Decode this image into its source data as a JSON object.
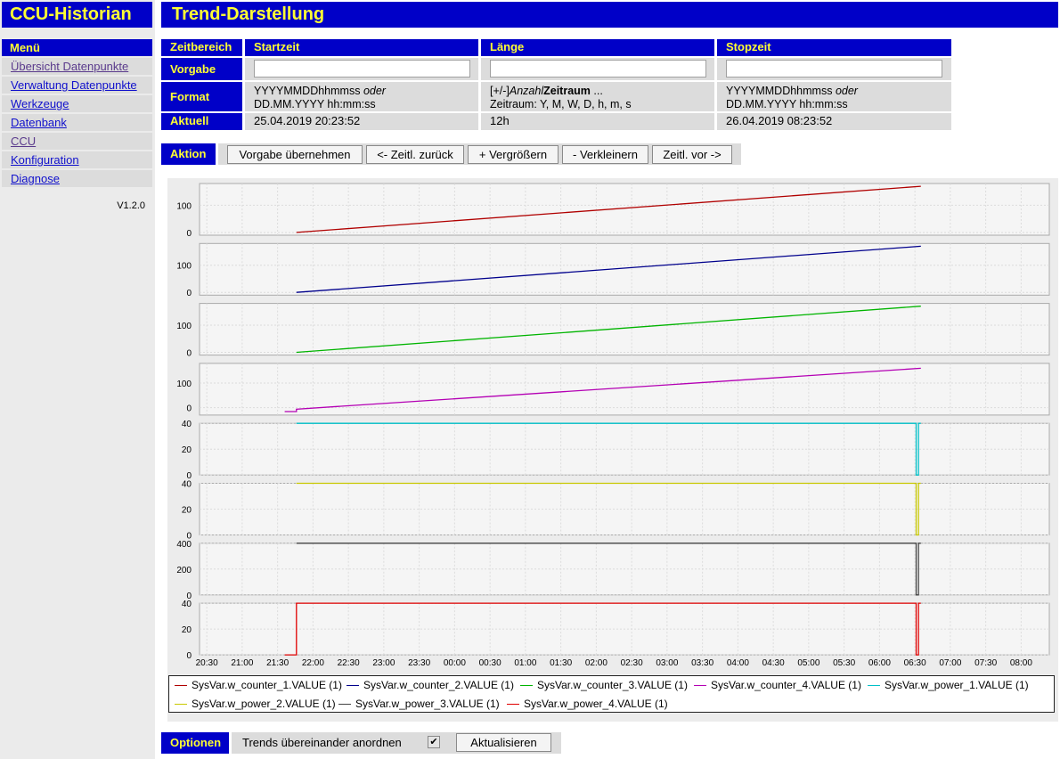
{
  "app_title": "CCU-Historian",
  "menu": {
    "header": "Menü",
    "items": [
      {
        "label": "Übersicht Datenpunkte"
      },
      {
        "label": "Verwaltung Datenpunkte"
      },
      {
        "label": "Werkzeuge"
      },
      {
        "label": "Datenbank"
      },
      {
        "label": "CCU"
      },
      {
        "label": "Konfiguration"
      },
      {
        "label": "Diagnose"
      }
    ],
    "version": "V1.2.0"
  },
  "page_title": "Trend-Darstellung",
  "time_table": {
    "headers": [
      "Zeitbereich",
      "Startzeit",
      "Länge",
      "Stopzeit"
    ],
    "rows": {
      "vorgabe": {
        "label": "Vorgabe",
        "start": "",
        "length": "",
        "stop": ""
      },
      "format": {
        "label": "Format",
        "start_l1": "YYYYMMDDhhmmss",
        "start_oder": "oder",
        "start_l2": "DD.MM.YYYY hh:mm:ss",
        "len_pre": "[+/-]",
        "len_anzahl": "Anzahl",
        "len_zeitraum": "Zeitraum",
        "len_post": " ...",
        "len_l2": "Zeitraum: Y, M, W, D, h, m, s",
        "stop_l1": "YYYYMMDDhhmmss",
        "stop_oder": "oder",
        "stop_l2": "DD.MM.YYYY hh:mm:ss"
      },
      "aktuell": {
        "label": "Aktuell",
        "start": "25.04.2019 20:23:52",
        "length": "12h",
        "stop": "26.04.2019 08:23:52"
      }
    }
  },
  "action": {
    "label": "Aktion",
    "buttons": [
      "Vorgabe übernehmen",
      "<- Zeitl. zurück",
      "+ Vergrößern",
      "- Verkleinern",
      "Zeitl. vor ->"
    ]
  },
  "options": {
    "label": "Optionen",
    "stack_label": "Trends übereinander anordnen",
    "stack_checked": true,
    "refresh_button": "Aktualisieren"
  },
  "chart_data": {
    "type": "line",
    "x_ticks": [
      "20:30",
      "21:00",
      "21:30",
      "22:00",
      "22:30",
      "23:00",
      "23:30",
      "00:00",
      "00:30",
      "01:00",
      "01:30",
      "02:00",
      "02:30",
      "03:00",
      "03:30",
      "04:00",
      "04:30",
      "05:00",
      "05:30",
      "06:00",
      "06:30",
      "07:00",
      "07:30",
      "08:00"
    ],
    "x_range": [
      "20:23:52",
      "08:23:52"
    ],
    "panels": [
      {
        "series": "SysVar.w_counter_1.VALUE (1)",
        "color": "#b00000",
        "kind": "ramp",
        "y_ticks": [
          0,
          100
        ],
        "ylim": [
          -10,
          180
        ],
        "x": [
          "21:46",
          "06:35"
        ],
        "y": [
          0,
          170
        ]
      },
      {
        "series": "SysVar.w_counter_2.VALUE (1)",
        "color": "#00008c",
        "kind": "ramp",
        "y_ticks": [
          0,
          100
        ],
        "ylim": [
          -10,
          180
        ],
        "x": [
          "21:46",
          "06:35"
        ],
        "y": [
          0,
          170
        ]
      },
      {
        "series": "SysVar.w_counter_3.VALUE (1)",
        "color": "#00b400",
        "kind": "ramp",
        "y_ticks": [
          0,
          100
        ],
        "ylim": [
          -10,
          180
        ],
        "x": [
          "21:46",
          "06:35"
        ],
        "y": [
          0,
          170
        ]
      },
      {
        "series": "SysVar.w_counter_4.VALUE (1)",
        "color": "#b400b4",
        "kind": "ramp",
        "y_ticks": [
          0,
          100
        ],
        "ylim": [
          -30,
          180
        ],
        "x": [
          "21:36",
          "21:46",
          "21:46",
          "06:35"
        ],
        "y": [
          -16,
          -16,
          -6,
          160
        ]
      },
      {
        "series": "SysVar.w_power_1.VALUE (1)",
        "color": "#00c0c8",
        "kind": "flat",
        "y_ticks": [
          0,
          20,
          40
        ],
        "ylim": [
          0,
          40
        ],
        "x": [
          "21:46",
          "06:31",
          "06:31",
          "06:33",
          "06:33",
          "06:35"
        ],
        "y": [
          40,
          40,
          0,
          0,
          40,
          40
        ]
      },
      {
        "series": "SysVar.w_power_2.VALUE (1)",
        "color": "#c8c800",
        "kind": "flat",
        "y_ticks": [
          0,
          20,
          40
        ],
        "ylim": [
          0,
          40
        ],
        "x": [
          "21:46",
          "06:31",
          "06:31",
          "06:33",
          "06:33",
          "06:35"
        ],
        "y": [
          40,
          40,
          0,
          0,
          40,
          40
        ]
      },
      {
        "series": "SysVar.w_power_3.VALUE (1)",
        "color": "#444444",
        "kind": "flat",
        "y_ticks": [
          0,
          200,
          400
        ],
        "ylim": [
          0,
          400
        ],
        "x": [
          "21:46",
          "06:31",
          "06:31",
          "06:33",
          "06:33",
          "06:35"
        ],
        "y": [
          400,
          400,
          0,
          0,
          400,
          400
        ]
      },
      {
        "series": "SysVar.w_power_4.VALUE (1)",
        "color": "#e00000",
        "kind": "flat",
        "y_ticks": [
          0,
          20,
          40
        ],
        "ylim": [
          0,
          40
        ],
        "x": [
          "21:36",
          "21:46",
          "21:46",
          "06:31",
          "06:31",
          "06:33",
          "06:33",
          "06:35"
        ],
        "y": [
          0,
          0,
          40,
          40,
          0,
          0,
          40,
          40
        ]
      }
    ],
    "legend": [
      {
        "name": "SysVar.w_counter_1.VALUE (1)",
        "color": "#b00000"
      },
      {
        "name": "SysVar.w_counter_2.VALUE (1)",
        "color": "#00008c"
      },
      {
        "name": "SysVar.w_counter_3.VALUE (1)",
        "color": "#00b400"
      },
      {
        "name": "SysVar.w_counter_4.VALUE (1)",
        "color": "#b400b4"
      },
      {
        "name": "SysVar.w_power_1.VALUE (1)",
        "color": "#00c0c8"
      },
      {
        "name": "SysVar.w_power_2.VALUE (1)",
        "color": "#c8c800"
      },
      {
        "name": "SysVar.w_power_3.VALUE (1)",
        "color": "#444444"
      },
      {
        "name": "SysVar.w_power_4.VALUE (1)",
        "color": "#e00000"
      }
    ],
    "grid": true,
    "legend_position": "bottom"
  }
}
